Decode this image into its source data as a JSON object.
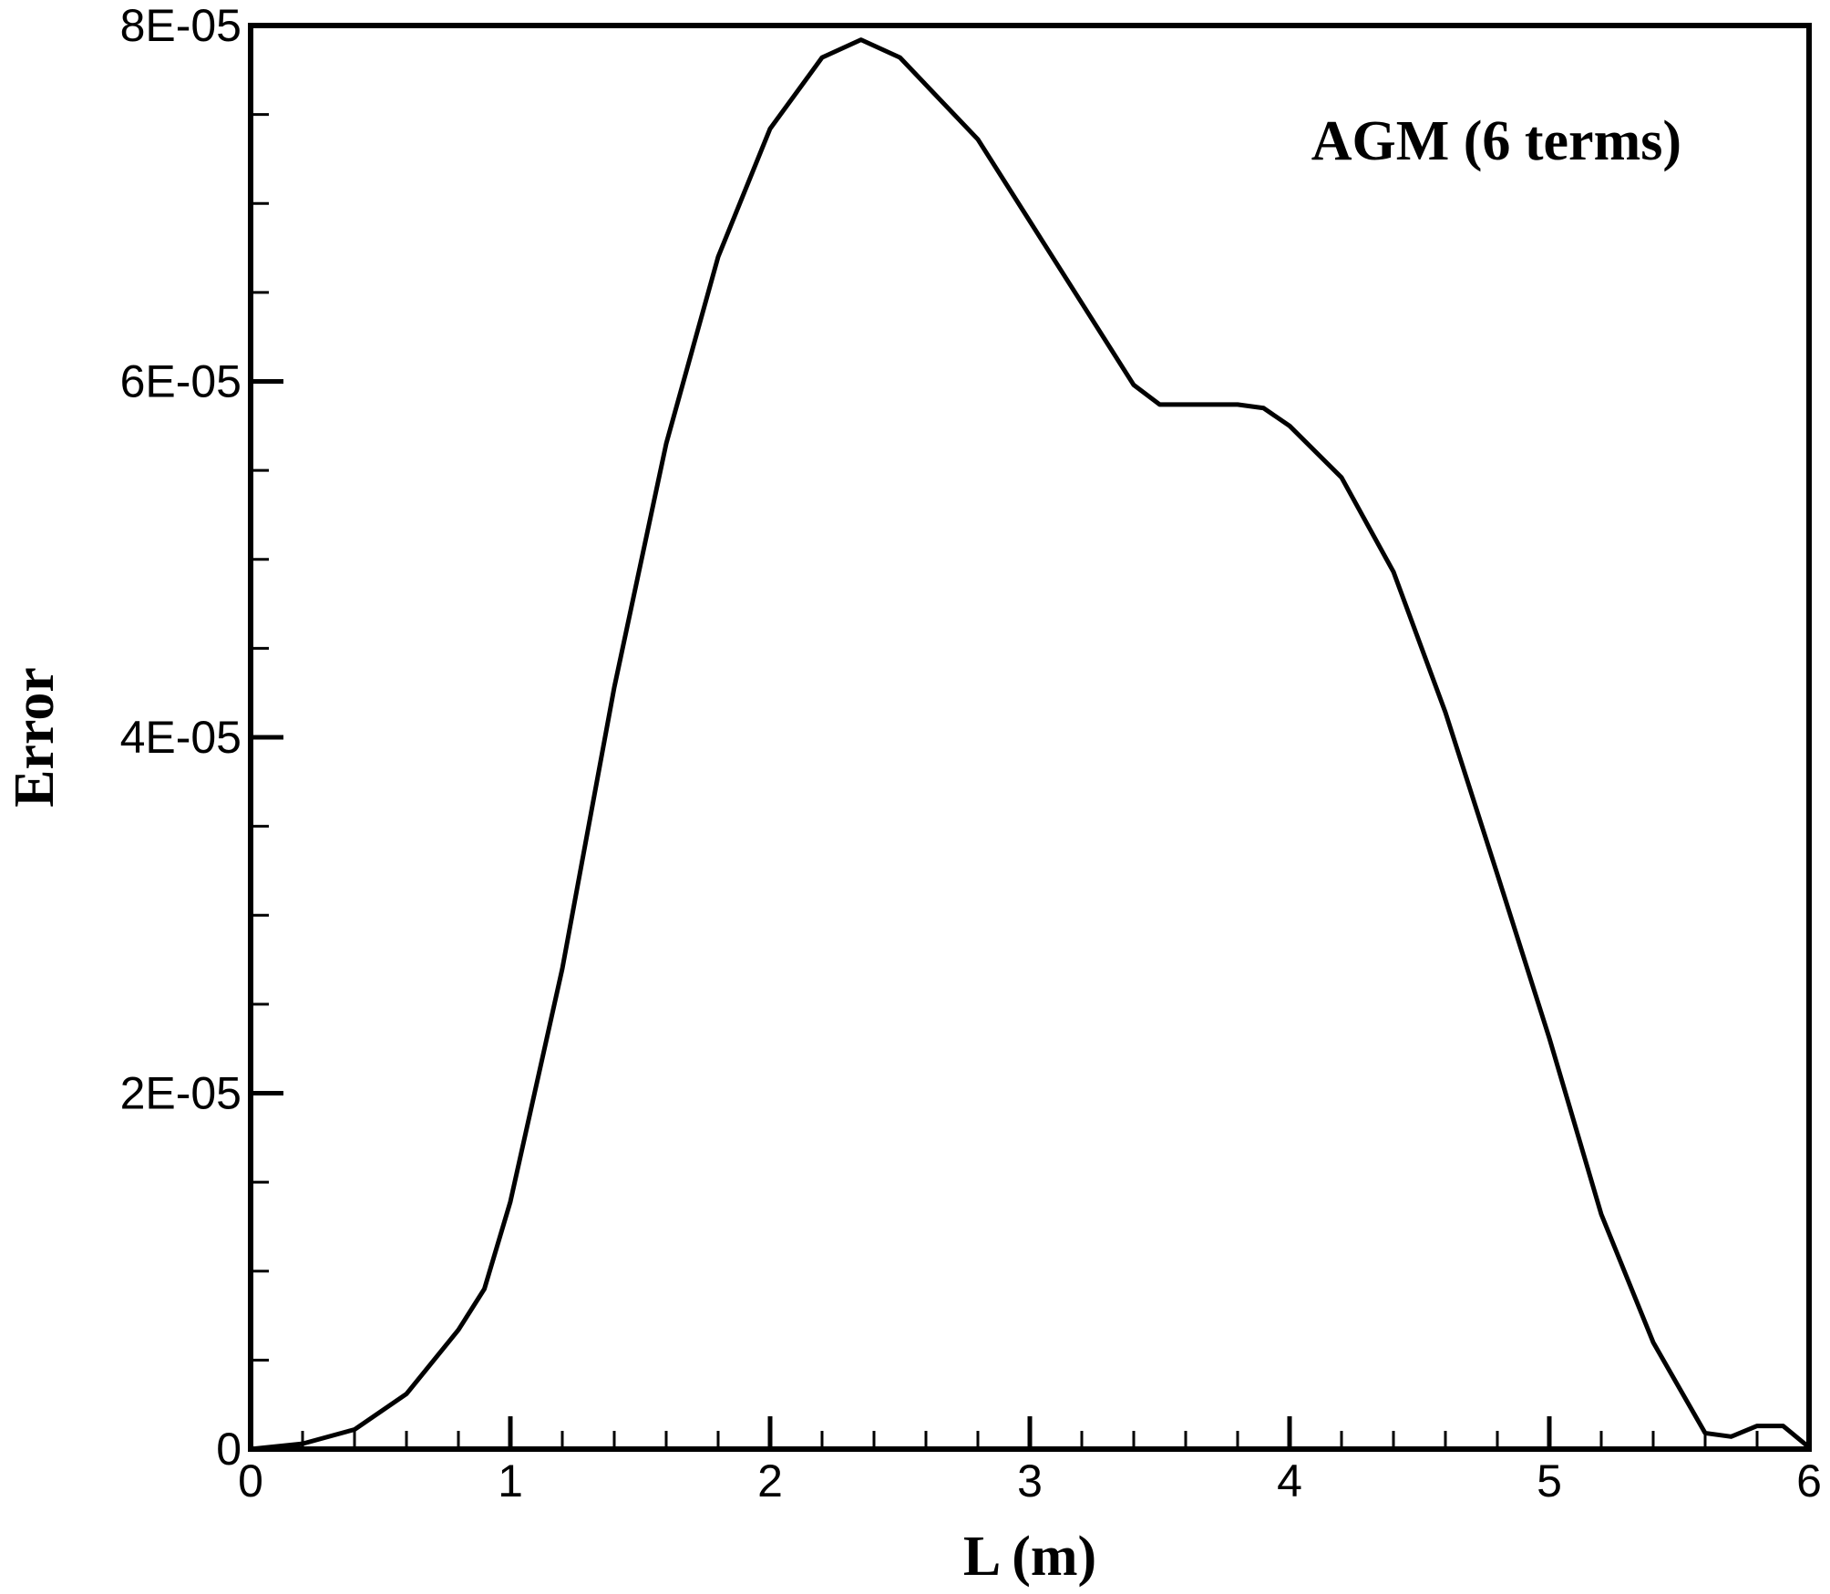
{
  "chart_data": {
    "type": "line",
    "annotation": "AGM (6 terms)",
    "x_label": "L (m)",
    "y_label": "Error",
    "xlim": [
      0,
      6
    ],
    "xticks": [
      0,
      1,
      2,
      3,
      4,
      5,
      6
    ],
    "xminorticks": [
      0.2,
      0.4,
      0.6,
      0.8,
      1.2,
      1.4,
      1.6,
      1.8,
      2.2,
      2.4,
      2.6,
      2.8,
      3.2,
      3.4,
      3.6,
      3.8,
      4.2,
      4.4,
      4.6,
      4.8,
      5.2,
      5.4,
      5.6,
      5.8
    ],
    "ylim": [
      0,
      8e-05
    ],
    "yticks": [
      0,
      {
        "value": 2e-05,
        "label": "2E-05"
      },
      {
        "value": 4e-05,
        "label": "4E-05"
      },
      {
        "value": 6e-05,
        "label": "6E-05"
      },
      {
        "value": 8e-05,
        "label": "8E-05"
      }
    ],
    "yminorticks": [
      5e-06,
      1e-05,
      1.5e-05,
      2.5e-05,
      3e-05,
      3.5e-05,
      4.5e-05,
      5e-05,
      5.5e-05,
      6.5e-05,
      7e-05,
      7.5e-05
    ],
    "series": [
      {
        "color": "#000000",
        "x": [
          0,
          0.2,
          0.4,
          0.6,
          0.8,
          0.9,
          1.0,
          1.2,
          1.4,
          1.6,
          1.8,
          2.0,
          2.2,
          2.35,
          2.5,
          2.8,
          3.0,
          3.2,
          3.4,
          3.5,
          3.8,
          3.9,
          4.0,
          4.2,
          4.4,
          4.6,
          4.8,
          5.0,
          5.2,
          5.4,
          5.6,
          5.7,
          5.8,
          5.9,
          6.0
        ],
        "values": [
          0,
          3e-07,
          1.1e-06,
          3.1e-06,
          6.7e-06,
          9e-06,
          1.39e-05,
          2.7e-05,
          4.28e-05,
          5.65e-05,
          6.7e-05,
          7.42e-05,
          7.82e-05,
          7.92e-05,
          7.82e-05,
          7.36e-05,
          6.9e-05,
          6.44e-05,
          5.98e-05,
          5.87e-05,
          5.87e-05,
          5.85e-05,
          5.75e-05,
          5.46e-05,
          4.93e-05,
          4.14e-05,
          3.23e-05,
          2.31e-05,
          1.32e-05,
          6e-06,
          9e-07,
          7e-07,
          1.3e-06,
          1.3e-06,
          1e-07
        ]
      }
    ]
  }
}
